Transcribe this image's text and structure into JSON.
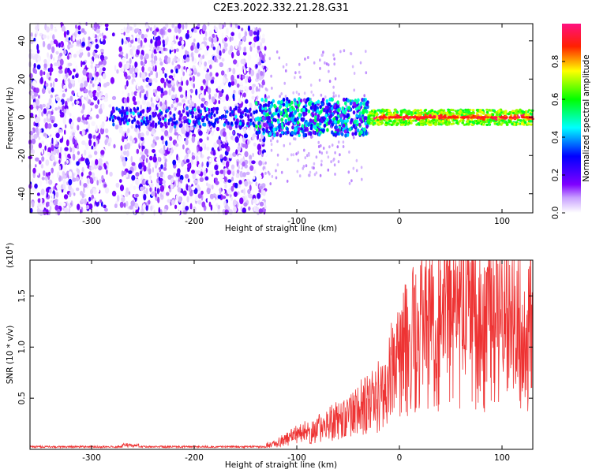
{
  "title": "C2E3.2022.332.21.28.G31",
  "chart_data": [
    {
      "type": "heatmap",
      "title": "C2E3.2022.332.21.28.G31",
      "xlabel": "Height of straight line (km)",
      "ylabel": "Frequency (Hz)",
      "xlim": [
        -360,
        130
      ],
      "ylim": [
        -50,
        49
      ],
      "x_ticks": [
        -300,
        -200,
        -100,
        0,
        100
      ],
      "y_ticks": [
        -40,
        -20,
        0,
        20,
        40
      ],
      "colorbar": {
        "label": "Normalized spectral amplitude",
        "range": [
          0,
          1
        ],
        "ticks": [
          "0.0",
          "0.2",
          "0.4",
          "0.6",
          "0.8"
        ],
        "colors": [
          "#ffffff",
          "#7f00ff",
          "#0000ff",
          "#00ffff",
          "#00ff00",
          "#ffff00",
          "#ff0000"
        ]
      },
      "signal_band": {
        "center_freq": 0,
        "half_width": 4,
        "onset_height": -140,
        "peak_amplitude": 0.95
      },
      "noise_region_upper_height": -140
    },
    {
      "type": "line",
      "xlabel": "Height of straight line (km)",
      "ylabel": "SNR (10 * v/v)",
      "y_multiplier_label": "(x10",
      "y_multiplier_exp": "4",
      "y_multiplier_close": ")",
      "xlim": [
        -360,
        130
      ],
      "ylim": [
        0,
        1.85
      ],
      "x_ticks": [
        -300,
        -200,
        -100,
        0,
        100
      ],
      "y_ticks": [
        0.5,
        1.0,
        1.5
      ],
      "line_color": "#ee3333",
      "series": [
        {
          "values": [
            {
              "x": -360,
              "y": 0.02
            },
            {
              "x": -280,
              "y": 0.02
            },
            {
              "x": -260,
              "y": 0.04
            },
            {
              "x": -200,
              "y": 0.02
            },
            {
              "x": -140,
              "y": 0.02
            },
            {
              "x": -120,
              "y": 0.06
            },
            {
              "x": -100,
              "y": 0.14
            },
            {
              "x": -80,
              "y": 0.2
            },
            {
              "x": -60,
              "y": 0.28
            },
            {
              "x": -40,
              "y": 0.38
            },
            {
              "x": -20,
              "y": 0.55
            },
            {
              "x": -10,
              "y": 0.7
            },
            {
              "x": 0,
              "y": 0.85
            },
            {
              "x": 10,
              "y": 1.05
            },
            {
              "x": 25,
              "y": 1.15
            },
            {
              "x": 50,
              "y": 1.25
            },
            {
              "x": 80,
              "y": 1.2
            },
            {
              "x": 100,
              "y": 1.22
            },
            {
              "x": 130,
              "y": 1.2
            }
          ]
        }
      ]
    }
  ]
}
